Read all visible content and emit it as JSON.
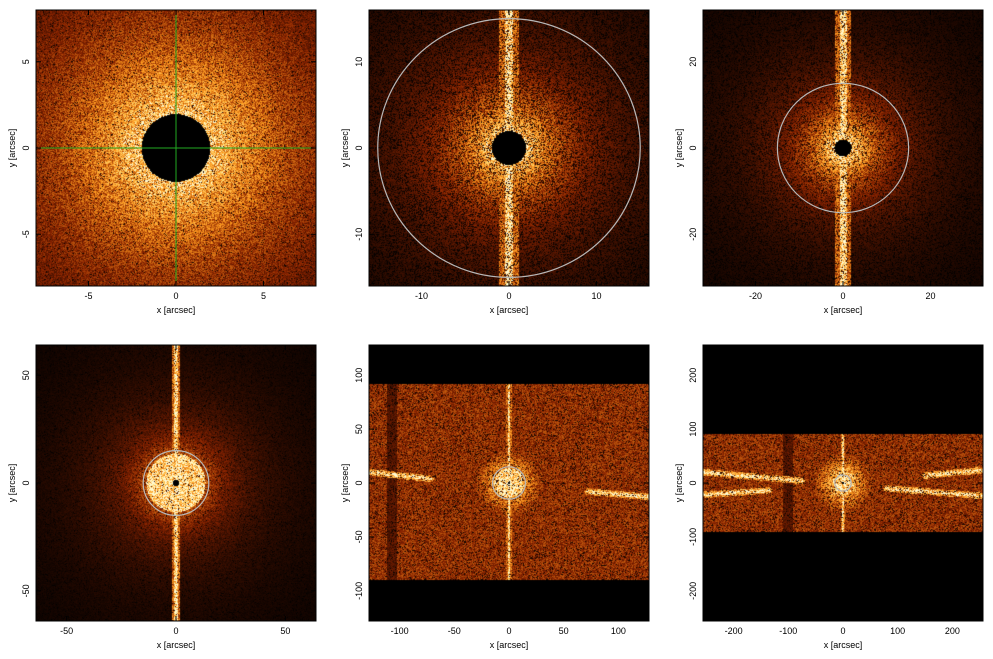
{
  "colors": {
    "background": "#000000",
    "halo_inner": "#ffe98a",
    "halo_mid": "#ff9a1f",
    "halo_outer": "#8a2300",
    "crosshair": "#22aa22",
    "aperture": "#b8b8b8"
  },
  "chart_data": [
    {
      "type": "heatmap",
      "xlabel": "x [arcsec]",
      "ylabel": "y [arcsec]",
      "xlim": [
        -8,
        8
      ],
      "ylim": [
        -8,
        8
      ],
      "xticks": [
        -5,
        0,
        5
      ],
      "yticks": [
        -5,
        0,
        5
      ],
      "grid": false,
      "core_hole_radius": 1.4,
      "halo_radius": 5.5,
      "crosshair": true,
      "spike_halfwidth": 0,
      "aperture_radius": null,
      "bright_core": false,
      "density": 0.95
    },
    {
      "type": "heatmap",
      "xlabel": "x [arcsec]",
      "ylabel": "y [arcsec]",
      "xlim": [
        -16,
        16
      ],
      "ylim": [
        -16,
        16
      ],
      "xticks": [
        -10,
        0,
        10
      ],
      "yticks": [
        -10,
        0,
        10
      ],
      "grid": false,
      "core_hole_radius": 1.4,
      "halo_radius": 5,
      "crosshair": false,
      "spike_halfwidth": 0.5,
      "aperture_radius": 15,
      "bright_core": false,
      "density": 0.8
    },
    {
      "type": "heatmap",
      "xlabel": "x [arcsec]",
      "ylabel": "y [arcsec]",
      "xlim": [
        -32,
        32
      ],
      "ylim": [
        -32,
        32
      ],
      "xticks": [
        -20,
        0,
        20
      ],
      "yticks": [
        -20,
        0,
        20
      ],
      "grid": false,
      "core_hole_radius": 1.4,
      "halo_radius": 7,
      "crosshair": false,
      "spike_halfwidth": 0.8,
      "aperture_radius": 15,
      "bright_core": false,
      "density": 0.85
    },
    {
      "type": "heatmap",
      "xlabel": "x [arcsec]",
      "ylabel": "y [arcsec]",
      "xlim": [
        -64,
        64
      ],
      "ylim": [
        -64,
        64
      ],
      "xticks": [
        -50,
        0,
        50
      ],
      "yticks": [
        -50,
        0,
        50
      ],
      "grid": false,
      "core_hole_radius": 1.4,
      "halo_radius": 12,
      "crosshair": false,
      "spike_halfwidth": 0.9,
      "aperture_radius": 15,
      "bright_core": true,
      "density": 0.95
    },
    {
      "type": "heatmap",
      "xlabel": "x [arcsec]",
      "ylabel": "y [arcsec]",
      "xlim": [
        -128,
        128
      ],
      "ylim": [
        -128,
        128
      ],
      "xticks": [
        -100,
        -50,
        0,
        50,
        100
      ],
      "yticks": [
        -100,
        -50,
        0,
        50,
        100
      ],
      "grid": false,
      "core_hole_radius": 1.4,
      "halo_radius": 22,
      "crosshair": false,
      "spike_halfwidth": 1.2,
      "spike_extent": 95,
      "aperture_radius": 15,
      "bright_core": true,
      "field_y": [
        -90,
        92
      ],
      "dark_band_x": -107,
      "streaks": [
        {
          "x1": -128,
          "y1": 10,
          "x2": -72,
          "y2": 4
        },
        {
          "x1": 72,
          "y1": -8,
          "x2": 128,
          "y2": -13
        }
      ],
      "density": 0.9
    },
    {
      "type": "heatmap",
      "xlabel": "x [arcsec]",
      "ylabel": "y [arcsec]",
      "xlim": [
        -256,
        256
      ],
      "ylim": [
        -256,
        256
      ],
      "xticks": [
        -200,
        -100,
        0,
        100,
        200
      ],
      "yticks": [
        -200,
        -100,
        0,
        100,
        200
      ],
      "grid": false,
      "core_hole_radius": 1.4,
      "halo_radius": 40,
      "crosshair": false,
      "spike_halfwidth": 2,
      "spike_extent": 95,
      "aperture_radius": 15,
      "bright_core": true,
      "field_y": [
        -90,
        90
      ],
      "dark_band_x": -100,
      "streaks": [
        {
          "x1": -256,
          "y1": 20,
          "x2": -76,
          "y2": 4
        },
        {
          "x1": -256,
          "y1": -22,
          "x2": -135,
          "y2": -14
        },
        {
          "x1": 150,
          "y1": 14,
          "x2": 256,
          "y2": 24
        },
        {
          "x1": 80,
          "y1": -10,
          "x2": 256,
          "y2": -24
        }
      ],
      "density": 0.9
    }
  ]
}
